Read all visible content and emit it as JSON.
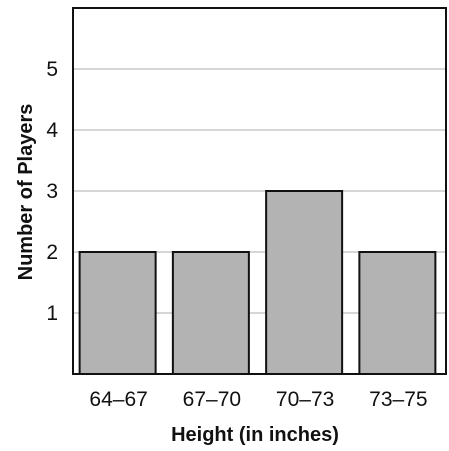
{
  "chart_data": {
    "type": "bar",
    "title": "",
    "xlabel": "Height (in inches)",
    "ylabel": "Number of Players",
    "categories": [
      "64–67",
      "67–70",
      "70–73",
      "73–75"
    ],
    "values": [
      2,
      2,
      3,
      2
    ],
    "ylim": [
      0,
      6
    ],
    "yticks": [
      1,
      2,
      3,
      4,
      5
    ],
    "grid": true,
    "colors": {
      "bar_fill": "#b3b3b3",
      "bar_stroke": "#111111",
      "grid": "#c8c8c8",
      "axis": "#111111"
    }
  }
}
